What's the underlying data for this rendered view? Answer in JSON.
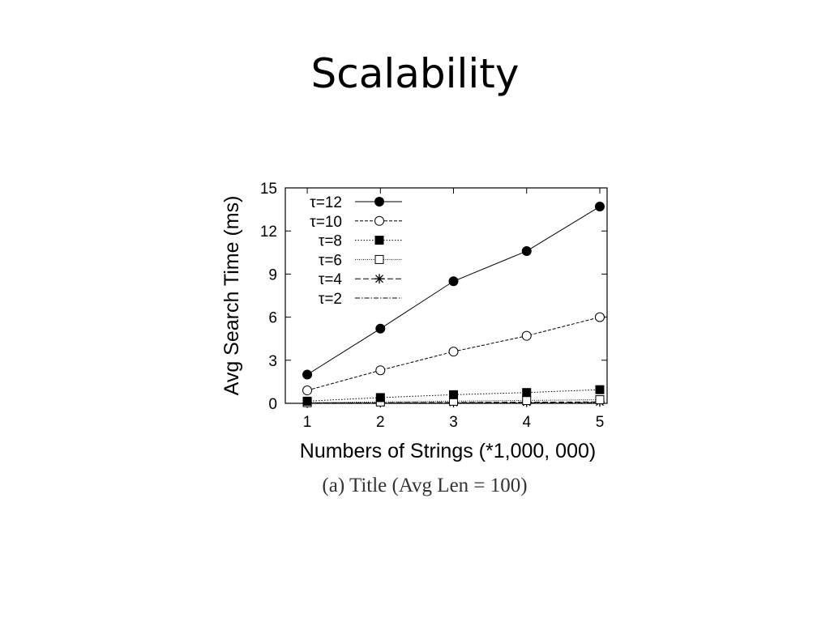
{
  "slide": {
    "title": "Scalability"
  },
  "caption": "(a) Title (Avg Len = 100)",
  "chart_data": {
    "type": "line",
    "xlabel": "Numbers of Strings (*1,000, 000)",
    "ylabel": "Avg Search Time (ms)",
    "x": [
      1,
      2,
      3,
      4,
      5
    ],
    "xlim": [
      0.7,
      5.1
    ],
    "ylim": [
      0,
      15
    ],
    "xticks": [
      1,
      2,
      3,
      4,
      5
    ],
    "yticks": [
      0,
      3,
      6,
      9,
      12,
      15
    ],
    "legend_position": "top-left",
    "grid": false,
    "series": [
      {
        "name": "τ=12",
        "marker": "filled-circle",
        "dash": "solid",
        "values": [
          2.0,
          5.2,
          8.5,
          10.6,
          13.7
        ]
      },
      {
        "name": "τ=10",
        "marker": "open-circle",
        "dash": "dashed",
        "values": [
          0.9,
          2.3,
          3.6,
          4.7,
          6.0
        ]
      },
      {
        "name": "τ=8",
        "marker": "filled-square",
        "dash": "dotted",
        "values": [
          0.15,
          0.4,
          0.6,
          0.75,
          0.95
        ]
      },
      {
        "name": "τ=6",
        "marker": "open-square",
        "dash": "fine-dotted",
        "values": [
          0.05,
          0.1,
          0.15,
          0.2,
          0.25
        ]
      },
      {
        "name": "τ=4",
        "marker": "asterisk",
        "dash": "long-dashed",
        "values": [
          0.02,
          0.04,
          0.06,
          0.08,
          0.1
        ]
      },
      {
        "name": "τ=2",
        "marker": "none",
        "dash": "dash-dot",
        "values": [
          0.01,
          0.02,
          0.03,
          0.04,
          0.05
        ]
      }
    ]
  }
}
